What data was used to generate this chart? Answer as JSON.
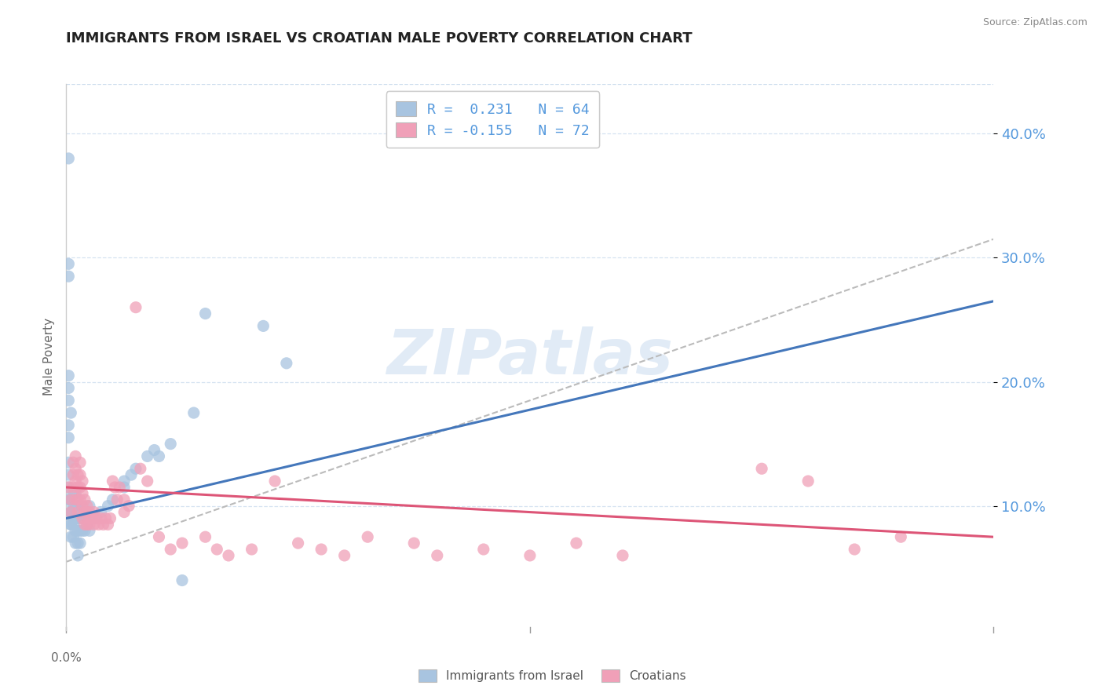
{
  "title": "IMMIGRANTS FROM ISRAEL VS CROATIAN MALE POVERTY CORRELATION CHART",
  "source": "Source: ZipAtlas.com",
  "ylabel": "Male Poverty",
  "watermark": "ZIPatlas",
  "legend_line1": "R =  0.231   N = 64",
  "legend_line2": "R = -0.155   N = 72",
  "xlim": [
    0.0,
    0.4
  ],
  "ylim": [
    0.0,
    0.44
  ],
  "yticks": [
    0.1,
    0.2,
    0.3,
    0.4
  ],
  "ytick_labels": [
    "10.0%",
    "20.0%",
    "30.0%",
    "40.0%"
  ],
  "color_blue": "#a8c4e0",
  "color_pink": "#f0a0b8",
  "line_blue": "#4477bb",
  "line_pink": "#dd5577",
  "line_dash_color": "#bbbbbb",
  "title_color": "#222222",
  "source_color": "#888888",
  "tick_color": "#5599dd",
  "blue_scatter": [
    [
      0.001,
      0.38
    ],
    [
      0.001,
      0.285
    ],
    [
      0.001,
      0.295
    ],
    [
      0.001,
      0.205
    ],
    [
      0.001,
      0.195
    ],
    [
      0.002,
      0.175
    ],
    [
      0.001,
      0.185
    ],
    [
      0.001,
      0.165
    ],
    [
      0.001,
      0.155
    ],
    [
      0.001,
      0.135
    ],
    [
      0.001,
      0.125
    ],
    [
      0.001,
      0.115
    ],
    [
      0.001,
      0.105
    ],
    [
      0.002,
      0.095
    ],
    [
      0.002,
      0.105
    ],
    [
      0.002,
      0.085
    ],
    [
      0.002,
      0.095
    ],
    [
      0.002,
      0.075
    ],
    [
      0.002,
      0.085
    ],
    [
      0.003,
      0.095
    ],
    [
      0.003,
      0.085
    ],
    [
      0.003,
      0.075
    ],
    [
      0.003,
      0.1
    ],
    [
      0.003,
      0.11
    ],
    [
      0.003,
      0.09
    ],
    [
      0.004,
      0.1
    ],
    [
      0.004,
      0.09
    ],
    [
      0.004,
      0.11
    ],
    [
      0.004,
      0.08
    ],
    [
      0.004,
      0.07
    ],
    [
      0.005,
      0.09
    ],
    [
      0.005,
      0.08
    ],
    [
      0.005,
      0.07
    ],
    [
      0.005,
      0.06
    ],
    [
      0.005,
      0.1
    ],
    [
      0.006,
      0.09
    ],
    [
      0.006,
      0.1
    ],
    [
      0.006,
      0.08
    ],
    [
      0.006,
      0.07
    ],
    [
      0.007,
      0.09
    ],
    [
      0.007,
      0.08
    ],
    [
      0.008,
      0.09
    ],
    [
      0.008,
      0.08
    ],
    [
      0.009,
      0.085
    ],
    [
      0.01,
      0.09
    ],
    [
      0.01,
      0.08
    ],
    [
      0.01,
      0.1
    ],
    [
      0.012,
      0.09
    ],
    [
      0.015,
      0.095
    ],
    [
      0.018,
      0.1
    ],
    [
      0.02,
      0.105
    ],
    [
      0.025,
      0.115
    ],
    [
      0.025,
      0.12
    ],
    [
      0.028,
      0.125
    ],
    [
      0.03,
      0.13
    ],
    [
      0.035,
      0.14
    ],
    [
      0.038,
      0.145
    ],
    [
      0.04,
      0.14
    ],
    [
      0.045,
      0.15
    ],
    [
      0.055,
      0.175
    ],
    [
      0.06,
      0.255
    ],
    [
      0.085,
      0.245
    ],
    [
      0.095,
      0.215
    ],
    [
      0.05,
      0.04
    ]
  ],
  "pink_scatter": [
    [
      0.001,
      0.115
    ],
    [
      0.002,
      0.105
    ],
    [
      0.002,
      0.095
    ],
    [
      0.003,
      0.115
    ],
    [
      0.003,
      0.125
    ],
    [
      0.003,
      0.135
    ],
    [
      0.004,
      0.105
    ],
    [
      0.004,
      0.12
    ],
    [
      0.004,
      0.13
    ],
    [
      0.004,
      0.14
    ],
    [
      0.005,
      0.115
    ],
    [
      0.005,
      0.105
    ],
    [
      0.005,
      0.095
    ],
    [
      0.005,
      0.125
    ],
    [
      0.006,
      0.105
    ],
    [
      0.006,
      0.115
    ],
    [
      0.006,
      0.125
    ],
    [
      0.006,
      0.135
    ],
    [
      0.007,
      0.11
    ],
    [
      0.007,
      0.12
    ],
    [
      0.007,
      0.1
    ],
    [
      0.007,
      0.09
    ],
    [
      0.008,
      0.095
    ],
    [
      0.008,
      0.105
    ],
    [
      0.008,
      0.085
    ],
    [
      0.009,
      0.095
    ],
    [
      0.009,
      0.085
    ],
    [
      0.009,
      0.1
    ],
    [
      0.01,
      0.095
    ],
    [
      0.01,
      0.085
    ],
    [
      0.011,
      0.09
    ],
    [
      0.012,
      0.095
    ],
    [
      0.012,
      0.085
    ],
    [
      0.013,
      0.09
    ],
    [
      0.014,
      0.085
    ],
    [
      0.015,
      0.09
    ],
    [
      0.016,
      0.085
    ],
    [
      0.017,
      0.09
    ],
    [
      0.018,
      0.085
    ],
    [
      0.019,
      0.09
    ],
    [
      0.02,
      0.12
    ],
    [
      0.021,
      0.115
    ],
    [
      0.022,
      0.105
    ],
    [
      0.023,
      0.115
    ],
    [
      0.025,
      0.105
    ],
    [
      0.025,
      0.095
    ],
    [
      0.027,
      0.1
    ],
    [
      0.03,
      0.26
    ],
    [
      0.032,
      0.13
    ],
    [
      0.035,
      0.12
    ],
    [
      0.04,
      0.075
    ],
    [
      0.045,
      0.065
    ],
    [
      0.05,
      0.07
    ],
    [
      0.06,
      0.075
    ],
    [
      0.065,
      0.065
    ],
    [
      0.07,
      0.06
    ],
    [
      0.08,
      0.065
    ],
    [
      0.09,
      0.12
    ],
    [
      0.1,
      0.07
    ],
    [
      0.11,
      0.065
    ],
    [
      0.12,
      0.06
    ],
    [
      0.13,
      0.075
    ],
    [
      0.15,
      0.07
    ],
    [
      0.16,
      0.06
    ],
    [
      0.18,
      0.065
    ],
    [
      0.2,
      0.06
    ],
    [
      0.22,
      0.07
    ],
    [
      0.24,
      0.06
    ],
    [
      0.3,
      0.13
    ],
    [
      0.32,
      0.12
    ],
    [
      0.34,
      0.065
    ],
    [
      0.36,
      0.075
    ]
  ],
  "blue_line_x": [
    0.0,
    0.4
  ],
  "blue_line_y": [
    0.09,
    0.265
  ],
  "pink_line_x": [
    0.0,
    0.4
  ],
  "pink_line_y": [
    0.115,
    0.075
  ],
  "dash_line_x": [
    0.0,
    0.4
  ],
  "dash_line_y": [
    0.055,
    0.315
  ]
}
